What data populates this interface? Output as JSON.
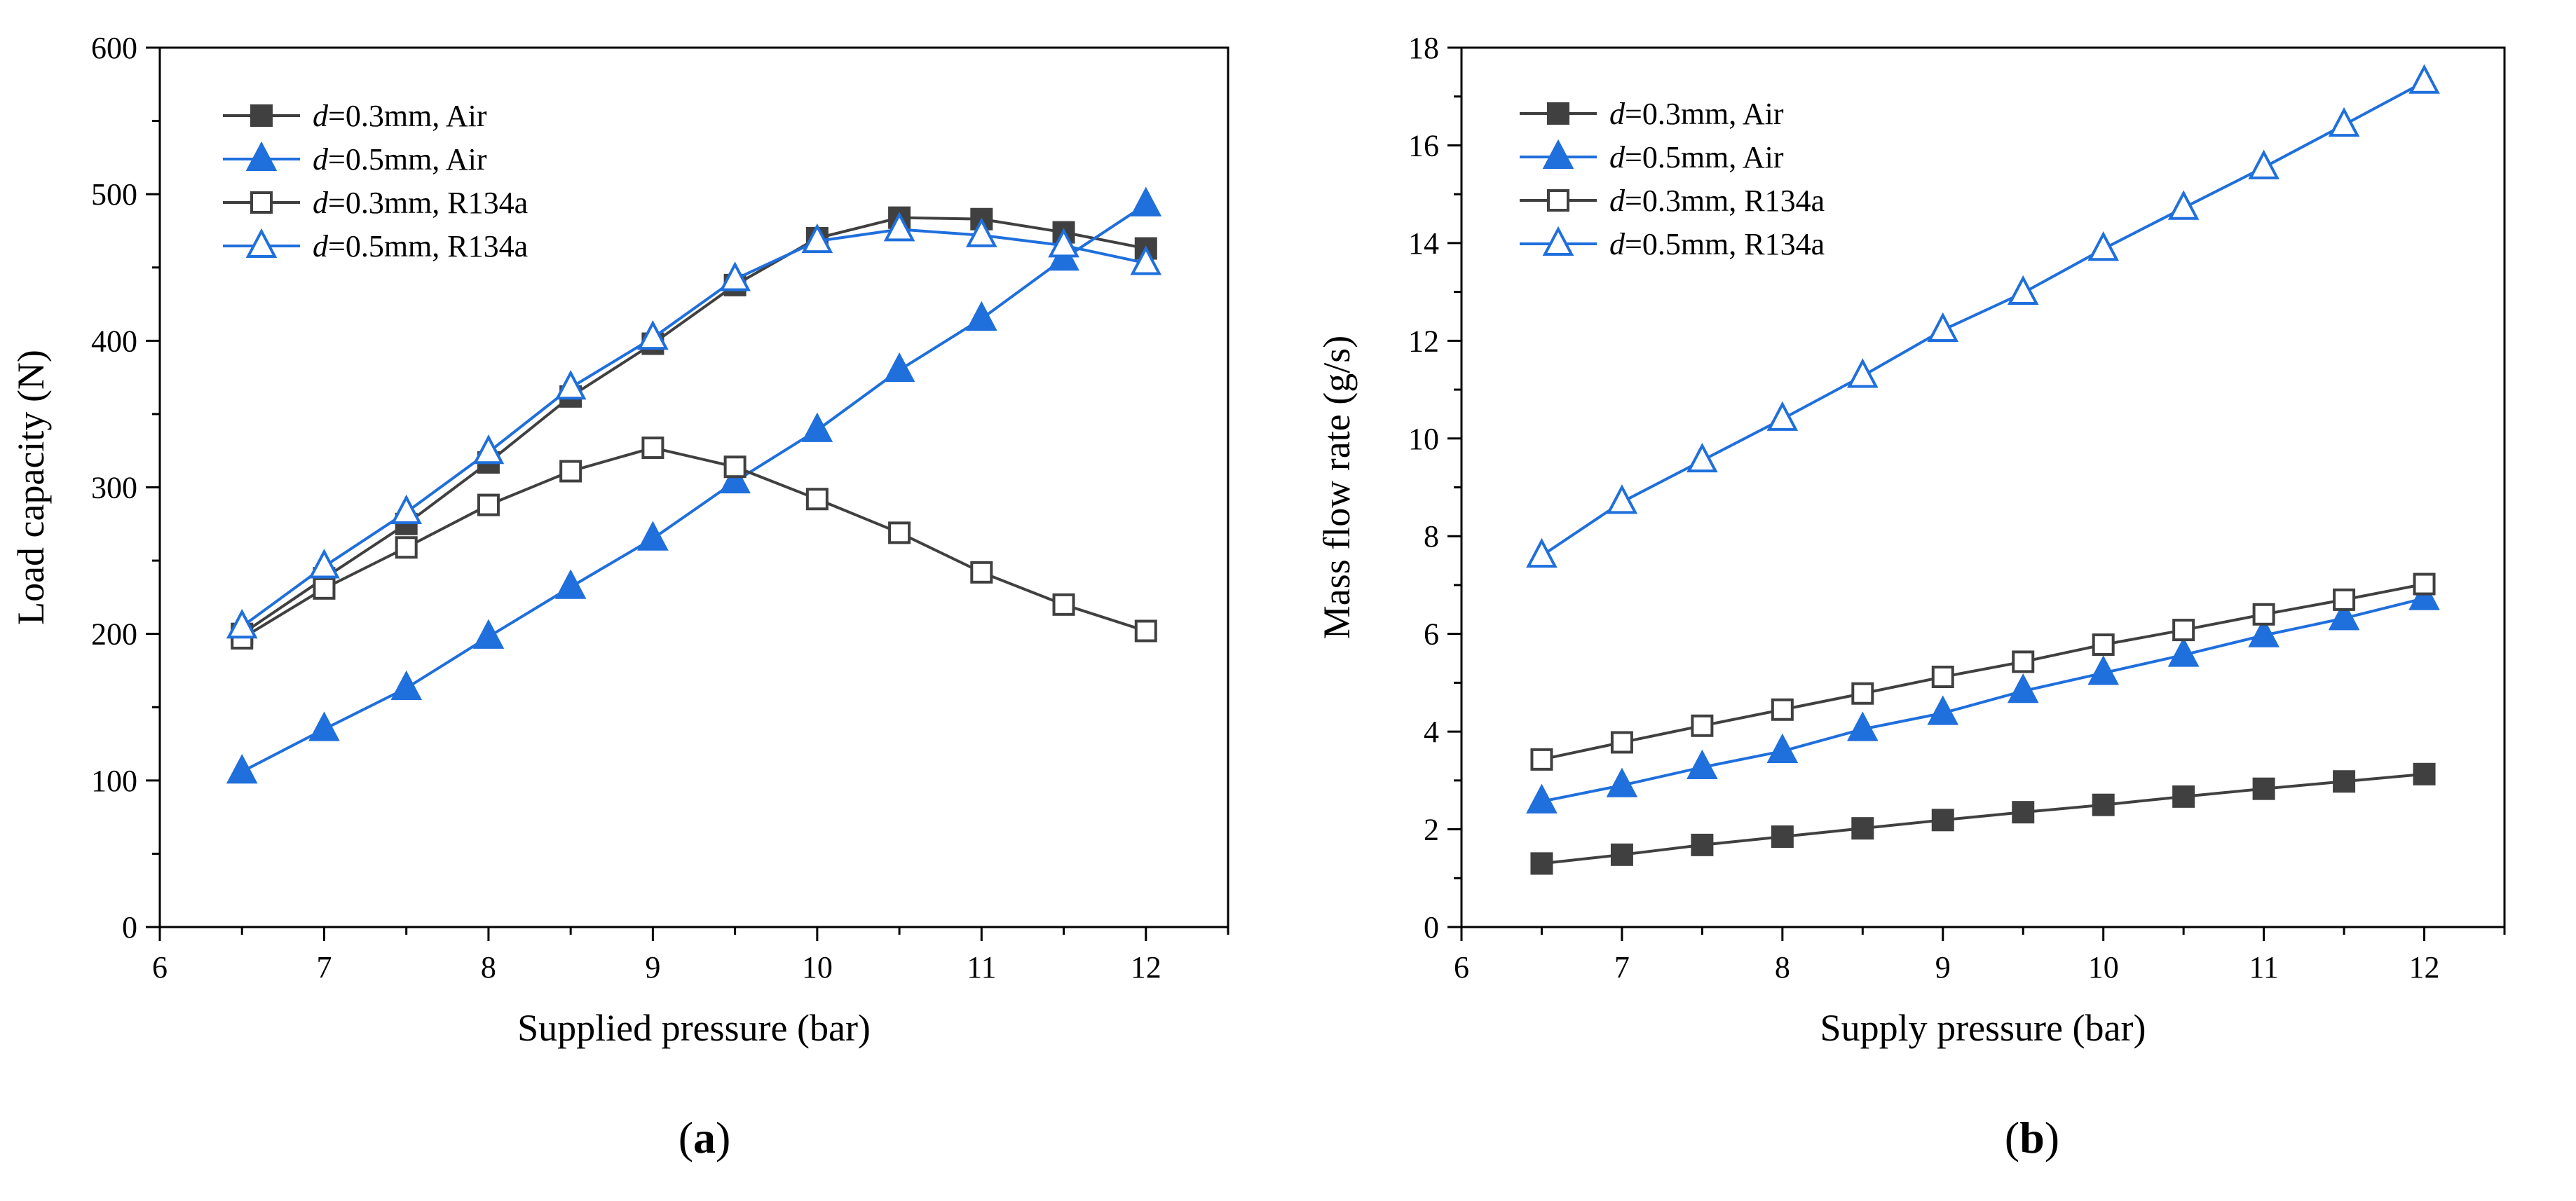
{
  "colors": {
    "dark": "#404040",
    "blue": "#1f6fdc"
  },
  "panels": {
    "a": {
      "label_prefix": "(",
      "label_letter": "a",
      "label_suffix": ")"
    },
    "b": {
      "label_prefix": "(",
      "label_letter": "b",
      "label_suffix": ")"
    }
  },
  "chart_data": [
    {
      "type": "line",
      "id": "a",
      "xlabel": "Supplied pressure (bar)",
      "ylabel": "Load capacity (N)",
      "xlim": [
        6,
        12.5
      ],
      "ylim": [
        0,
        600
      ],
      "xticks": [
        6,
        7,
        8,
        9,
        10,
        11,
        12
      ],
      "yticks": [
        0,
        100,
        200,
        300,
        400,
        500,
        600
      ],
      "x": [
        6.5,
        7,
        7.5,
        8,
        8.5,
        9,
        9.5,
        10,
        10.5,
        11,
        11.5,
        12
      ],
      "legend_position": "top-left",
      "series": [
        {
          "name_prefix": "d",
          "name_suffix": "=0.3mm, Air",
          "color": "#404040",
          "marker": "square-filled",
          "values": [
            200,
            238,
            275,
            317,
            362,
            398,
            438,
            470,
            484,
            483,
            474,
            463
          ]
        },
        {
          "name_prefix": "d",
          "name_suffix": "=0.5mm, Air",
          "color": "#1f6fdc",
          "marker": "triangle-filled",
          "values": [
            106,
            135,
            163,
            198,
            232,
            265,
            304,
            339,
            380,
            415,
            456,
            493
          ]
        },
        {
          "name_prefix": "d",
          "name_suffix": "=0.3mm, R134a",
          "color": "#404040",
          "marker": "square-open",
          "values": [
            197,
            231,
            259,
            288,
            311,
            327,
            314,
            292,
            269,
            242,
            220,
            202
          ]
        },
        {
          "name_prefix": "d",
          "name_suffix": "=0.5mm, R134a",
          "color": "#1f6fdc",
          "marker": "triangle-open",
          "values": [
            205,
            246,
            283,
            324,
            368,
            402,
            442,
            468,
            476,
            472,
            465,
            453
          ]
        }
      ]
    },
    {
      "type": "line",
      "id": "b",
      "xlabel": "Supply pressure (bar)",
      "ylabel": "Mass flow rate (g/s)",
      "xlim": [
        6,
        12.5
      ],
      "ylim": [
        0,
        18
      ],
      "xticks": [
        6,
        7,
        8,
        9,
        10,
        11,
        12
      ],
      "yticks": [
        0,
        2,
        4,
        6,
        8,
        10,
        12,
        14,
        16,
        18
      ],
      "x": [
        6.5,
        7,
        7.5,
        8,
        8.5,
        9,
        9.5,
        10,
        10.5,
        11,
        11.5,
        12
      ],
      "legend_position": "top-left",
      "series": [
        {
          "name_prefix": "d",
          "name_suffix": "=0.3mm, Air",
          "color": "#404040",
          "marker": "square-filled",
          "values": [
            1.3,
            1.48,
            1.68,
            1.85,
            2.02,
            2.19,
            2.35,
            2.5,
            2.67,
            2.83,
            2.98,
            3.13
          ]
        },
        {
          "name_prefix": "d",
          "name_suffix": "=0.5mm, Air",
          "color": "#1f6fdc",
          "marker": "triangle-filled",
          "values": [
            2.57,
            2.9,
            3.27,
            3.6,
            4.05,
            4.38,
            4.83,
            5.2,
            5.57,
            5.97,
            6.32,
            6.73
          ]
        },
        {
          "name_prefix": "d",
          "name_suffix": "=0.3mm, R134a",
          "color": "#404040",
          "marker": "square-open",
          "values": [
            3.43,
            3.78,
            4.12,
            4.45,
            4.78,
            5.12,
            5.43,
            5.78,
            6.08,
            6.4,
            6.7,
            7.02
          ]
        },
        {
          "name_prefix": "d",
          "name_suffix": "=0.5mm, R134a",
          "color": "#1f6fdc",
          "marker": "triangle-open",
          "values": [
            7.6,
            8.7,
            9.55,
            10.4,
            11.28,
            12.22,
            12.98,
            13.88,
            14.72,
            15.55,
            16.42,
            17.3
          ]
        }
      ]
    }
  ]
}
